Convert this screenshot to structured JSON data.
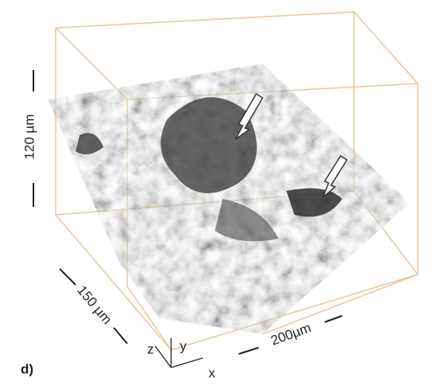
{
  "labels": {
    "panel": "d)",
    "height": "120 µm",
    "depth": "150 µm",
    "width": "200µm",
    "axis_z": "z",
    "axis_y": "y",
    "axis_x": "x"
  }
}
